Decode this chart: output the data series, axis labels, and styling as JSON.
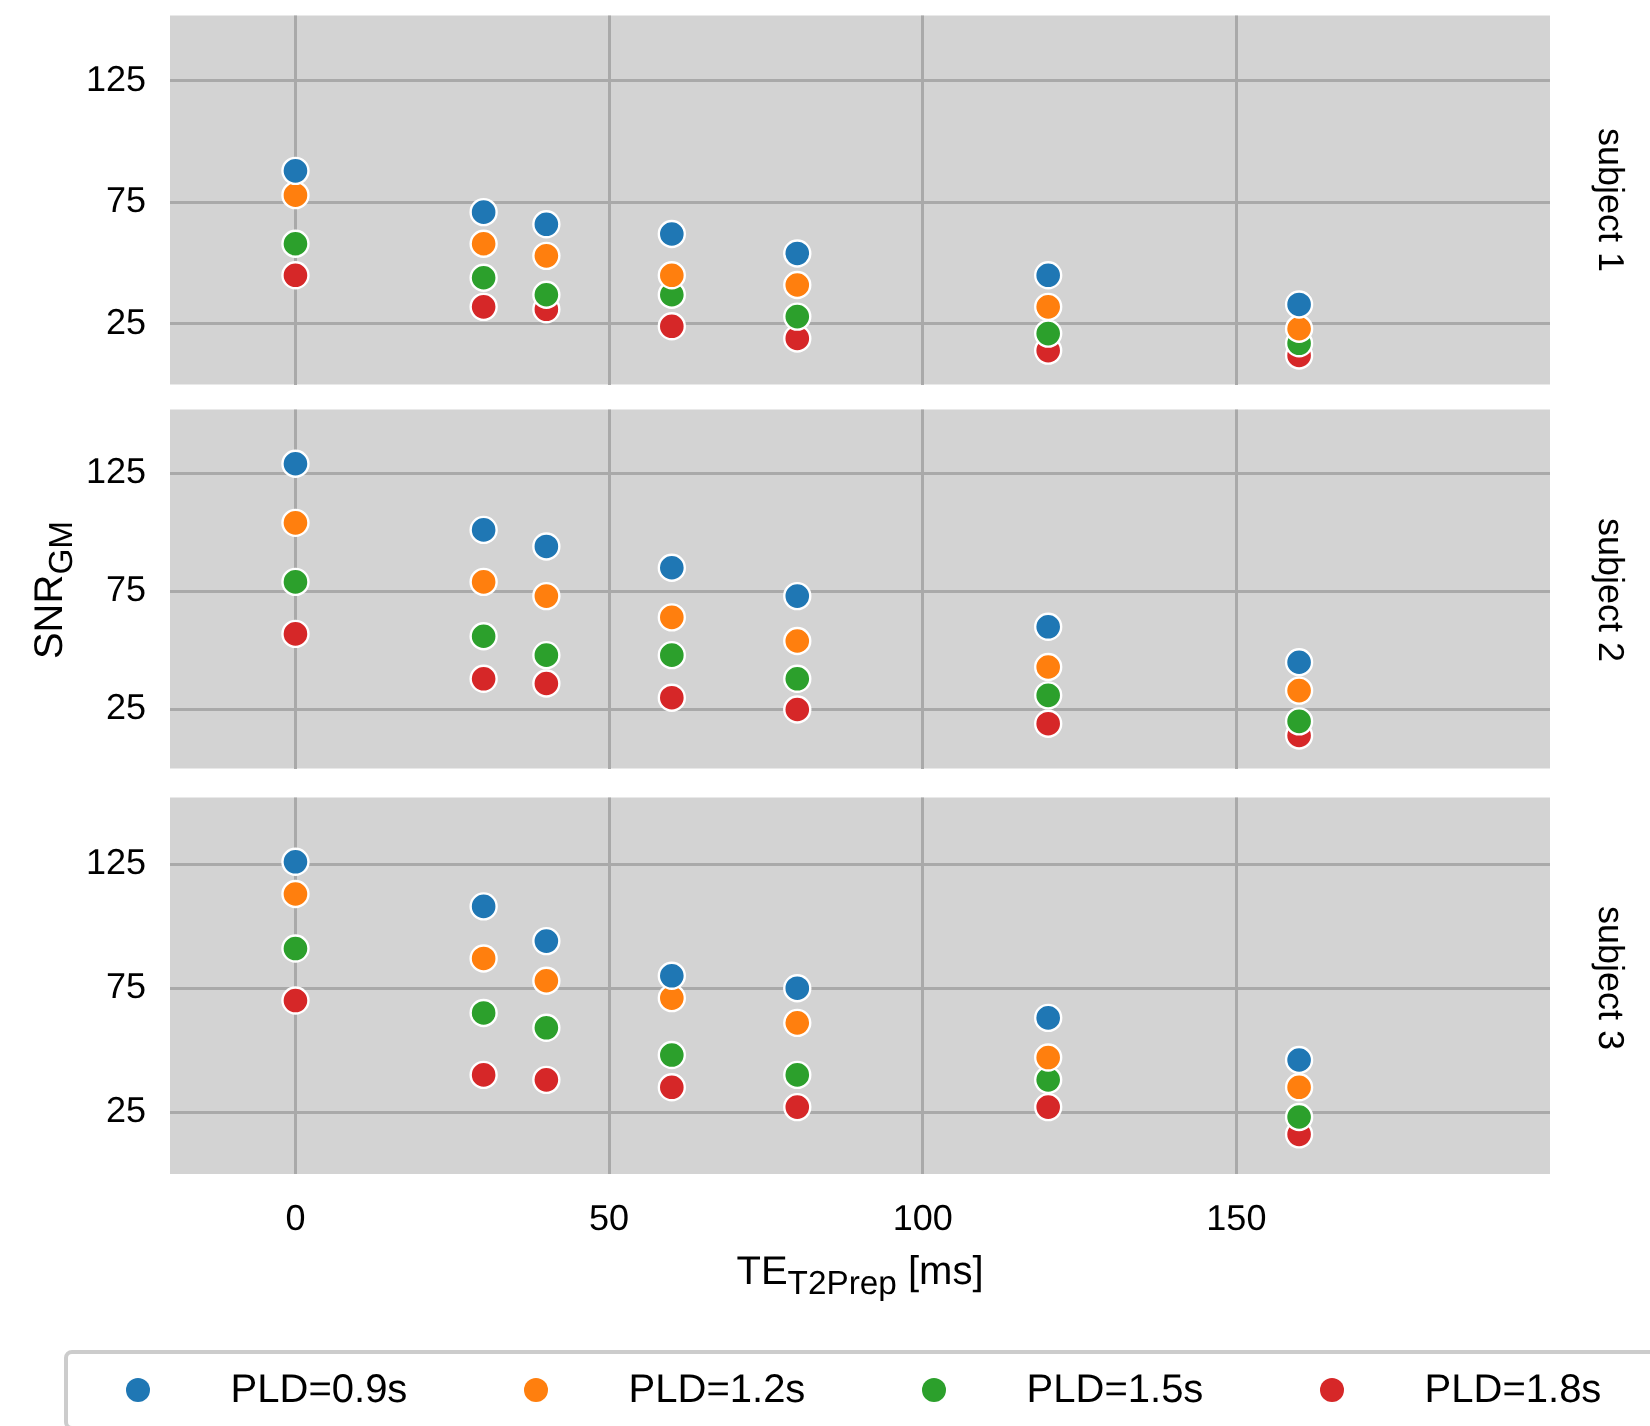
{
  "chart_data": [
    {
      "type": "scatter",
      "annotations": [
        "subject 1"
      ],
      "x": [
        0,
        30,
        40,
        60,
        80,
        120,
        160
      ],
      "xlim": [
        -20,
        200
      ],
      "xticks": [
        0,
        50,
        100,
        150
      ],
      "ylim": [
        0,
        152
      ],
      "yticks": [
        25,
        75,
        125
      ],
      "grid": true,
      "marker": "circle",
      "tick_labels": "y",
      "series": [
        {
          "color": "#1f77b4",
          "values": [
            88,
            71,
            66,
            62,
            54,
            45,
            33
          ]
        },
        {
          "color": "#ff7f0e",
          "values": [
            78,
            58,
            53,
            45,
            41,
            32,
            23
          ]
        },
        {
          "color": "#2ca02c",
          "values": [
            58,
            44,
            37,
            37,
            28,
            21,
            17
          ]
        },
        {
          "color": "#d62728",
          "values": [
            45,
            32,
            31,
            24,
            19,
            14,
            12
          ]
        }
      ]
    },
    {
      "type": "scatter",
      "annotations": [
        "subject 2"
      ],
      "ylabel": "SNR$_{GM}$",
      "x": [
        0,
        30,
        40,
        60,
        80,
        120,
        160
      ],
      "xlim": [
        -20,
        200
      ],
      "xticks": [
        0,
        50,
        100,
        150
      ],
      "ylim": [
        0,
        152
      ],
      "yticks": [
        25,
        75,
        125
      ],
      "grid": true,
      "marker": "circle",
      "tick_labels": "y",
      "series": [
        {
          "color": "#1f77b4",
          "values": [
            129,
            101,
            94,
            85,
            73,
            60,
            45
          ]
        },
        {
          "color": "#ff7f0e",
          "values": [
            104,
            79,
            73,
            64,
            54,
            43,
            33
          ]
        },
        {
          "color": "#2ca02c",
          "values": [
            79,
            56,
            48,
            48,
            38,
            31,
            20
          ]
        },
        {
          "color": "#d62728",
          "values": [
            57,
            38,
            36,
            30,
            25,
            19,
            14
          ]
        }
      ]
    },
    {
      "type": "scatter",
      "annotations": [
        "subject 3"
      ],
      "xlabel": "TE$_{T2Prep}$ [ms]",
      "x": [
        0,
        30,
        40,
        60,
        80,
        120,
        160
      ],
      "xlim": [
        -20,
        200
      ],
      "xticks": [
        0,
        50,
        100,
        150
      ],
      "ylim": [
        0,
        152
      ],
      "yticks": [
        25,
        75,
        125
      ],
      "grid": true,
      "marker": "circle",
      "legend": "bottom",
      "series": [
        {
          "name": "PLD=0.9s",
          "color": "#1f77b4",
          "values": [
            126,
            108,
            94,
            80,
            75,
            63,
            46
          ]
        },
        {
          "name": "PLD=1.2s",
          "color": "#ff7f0e",
          "values": [
            113,
            87,
            78,
            71,
            61,
            47,
            35
          ]
        },
        {
          "name": "PLD=1.5s",
          "color": "#2ca02c",
          "values": [
            91,
            65,
            59,
            48,
            40,
            38,
            23
          ]
        },
        {
          "name": "PLD=1.8s",
          "color": "#d62728",
          "values": [
            70,
            40,
            38,
            35,
            27,
            27,
            16
          ]
        }
      ]
    }
  ]
}
